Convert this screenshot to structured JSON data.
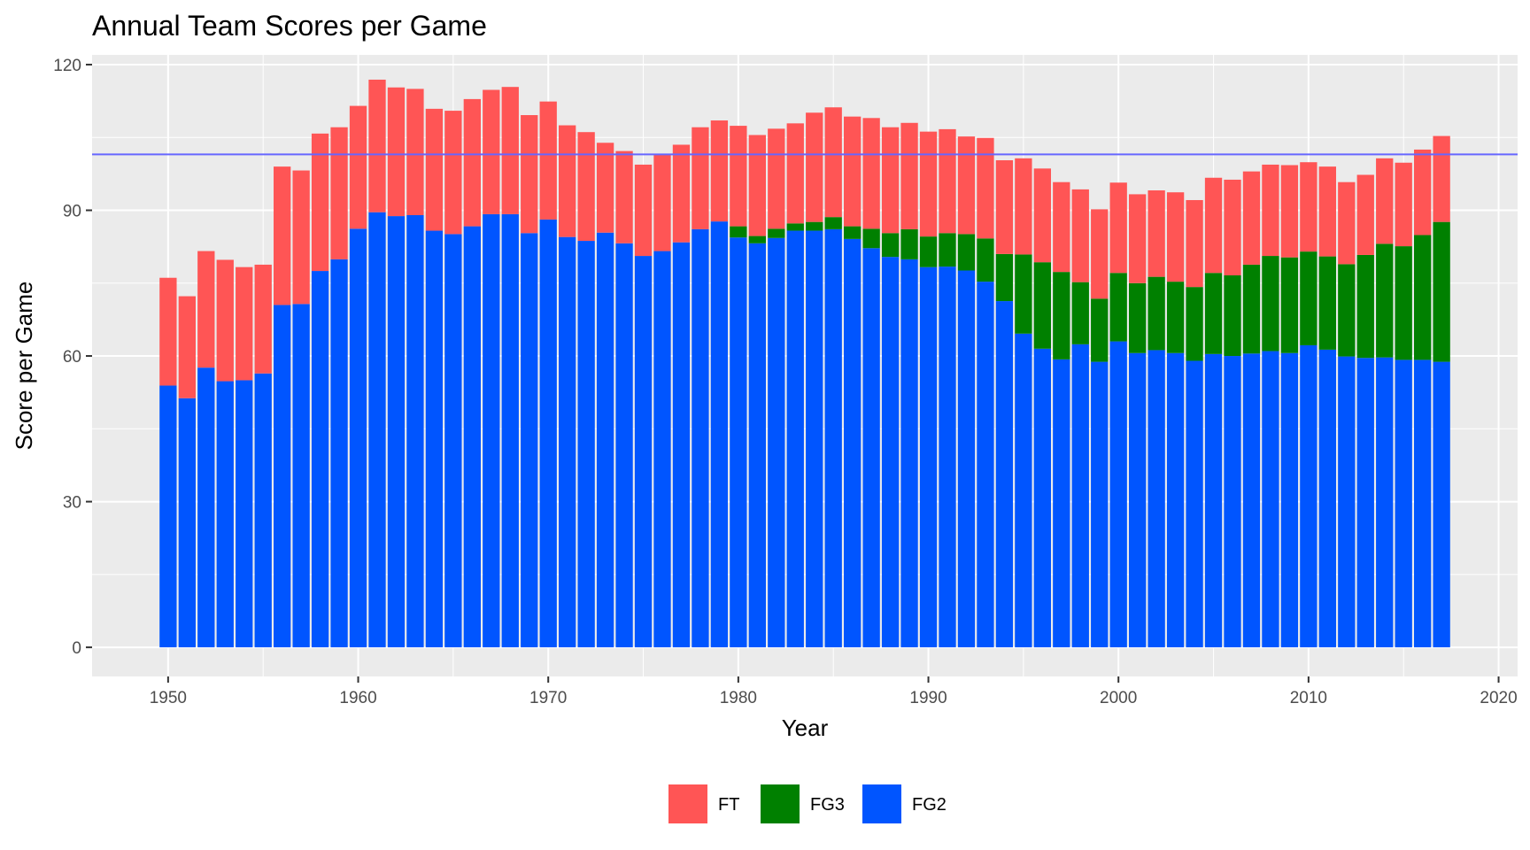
{
  "chart_data": {
    "type": "bar",
    "stacked": true,
    "title": "Annual Team Scores per Game",
    "xlabel": "Year",
    "ylabel": "Score per Game",
    "xlim": [
      1946,
      2021
    ],
    "ylim": [
      -6,
      122
    ],
    "x_ticks": [
      1950,
      1960,
      1970,
      1980,
      1990,
      2000,
      2010,
      2020
    ],
    "y_ticks": [
      0,
      30,
      60,
      90,
      120
    ],
    "grid": true,
    "background": "#EBEBEB",
    "legend_position": "bottom",
    "reference_line": {
      "y": 101.5,
      "color": "#6666FF"
    },
    "x": [
      1950,
      1951,
      1952,
      1953,
      1954,
      1955,
      1956,
      1957,
      1958,
      1959,
      1960,
      1961,
      1962,
      1963,
      1964,
      1965,
      1966,
      1967,
      1968,
      1969,
      1970,
      1971,
      1972,
      1973,
      1974,
      1975,
      1976,
      1977,
      1978,
      1979,
      1980,
      1981,
      1982,
      1983,
      1984,
      1985,
      1986,
      1987,
      1988,
      1989,
      1990,
      1991,
      1992,
      1993,
      1994,
      1995,
      1996,
      1997,
      1998,
      1999,
      2000,
      2001,
      2002,
      2003,
      2004,
      2005,
      2006,
      2007,
      2008,
      2009,
      2010,
      2011,
      2012,
      2013,
      2014,
      2015,
      2016,
      2017
    ],
    "series": [
      {
        "name": "FG2",
        "color": "#0055FF",
        "values": [
          53.9,
          51.3,
          57.6,
          54.8,
          55.0,
          56.4,
          70.5,
          70.7,
          77.5,
          79.9,
          86.2,
          89.6,
          88.8,
          89.0,
          85.8,
          85.1,
          86.7,
          89.2,
          89.2,
          85.3,
          88.1,
          84.5,
          83.7,
          85.4,
          83.2,
          80.6,
          81.6,
          83.4,
          86.1,
          87.7,
          84.4,
          83.2,
          84.3,
          85.8,
          85.8,
          86.1,
          84.1,
          82.2,
          80.4,
          79.9,
          78.3,
          78.4,
          77.6,
          75.3,
          71.3,
          64.6,
          61.5,
          59.3,
          62.4,
          58.8,
          63.0,
          60.6,
          61.2,
          60.6,
          59.0,
          60.4,
          60.0,
          60.5,
          61.0,
          60.6,
          62.2,
          61.3,
          59.9,
          59.6,
          59.7,
          59.2,
          59.2,
          58.8
        ]
      },
      {
        "name": "FG3",
        "color": "#008000",
        "values": [
          0,
          0,
          0,
          0,
          0,
          0,
          0,
          0,
          0,
          0,
          0,
          0,
          0,
          0,
          0,
          0,
          0,
          0,
          0,
          0,
          0,
          0,
          0,
          0,
          0,
          0,
          0,
          0,
          0,
          0,
          2.3,
          1.5,
          1.9,
          1.5,
          1.8,
          2.5,
          2.6,
          4.0,
          4.9,
          6.2,
          6.3,
          6.9,
          7.5,
          8.9,
          9.7,
          16.3,
          17.8,
          18.0,
          12.8,
          13.0,
          14.1,
          14.4,
          15.1,
          14.7,
          15.2,
          16.7,
          16.6,
          18.3,
          19.6,
          19.7,
          19.3,
          19.2,
          19.0,
          21.2,
          23.4,
          23.4,
          25.7,
          28.8
        ]
      },
      {
        "name": "FT",
        "color": "#FF5555",
        "values": [
          22.2,
          21.0,
          24.0,
          25.0,
          23.3,
          22.4,
          28.5,
          27.5,
          28.3,
          27.2,
          25.3,
          27.3,
          26.5,
          26.0,
          25.1,
          25.4,
          26.2,
          25.6,
          26.2,
          24.3,
          24.3,
          23.0,
          22.4,
          18.5,
          19.0,
          18.8,
          19.8,
          20.1,
          21.0,
          20.8,
          20.7,
          20.8,
          20.6,
          20.6,
          22.5,
          22.6,
          22.6,
          22.8,
          21.8,
          21.9,
          21.6,
          21.4,
          20.1,
          20.7,
          19.3,
          19.8,
          19.3,
          18.5,
          19.1,
          18.4,
          18.6,
          18.3,
          17.8,
          18.4,
          17.9,
          19.6,
          19.7,
          19.2,
          18.8,
          19.0,
          18.4,
          18.5,
          16.9,
          16.5,
          17.6,
          17.2,
          17.6,
          17.7
        ]
      }
    ],
    "legend": [
      "FT",
      "FG3",
      "FG2"
    ]
  }
}
